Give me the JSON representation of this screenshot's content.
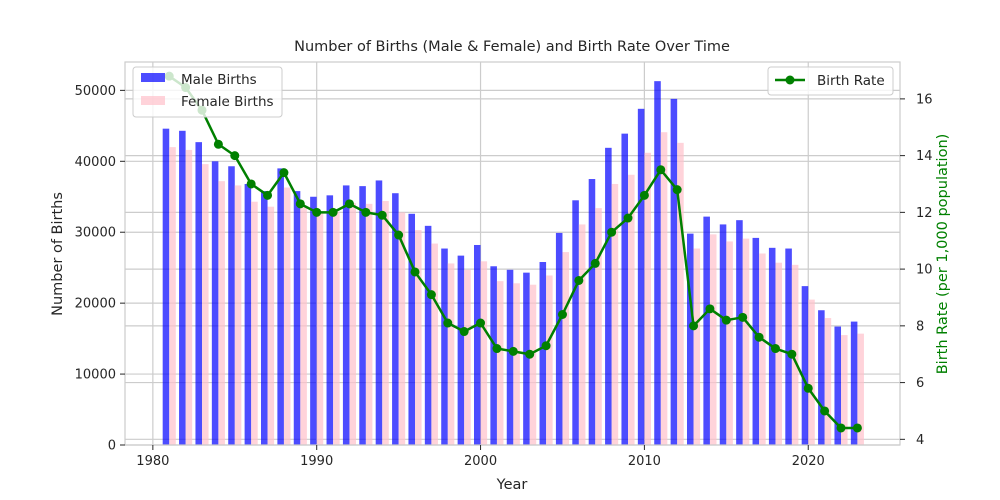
{
  "chart_data": {
    "type": "bar",
    "title": "Number of Births (Male & Female) and Birth Rate Over Time",
    "xlabel": "Year",
    "ylabel": "Number of Births",
    "y2label": "Birth Rate (per 1,000 population)",
    "xlim": [
      1978.3,
      2025.6
    ],
    "ylim": [
      0,
      54000
    ],
    "y2lim": [
      3.8,
      17.3
    ],
    "x_ticks": [
      1980,
      1990,
      2000,
      2010,
      2020
    ],
    "y_ticks": [
      0,
      10000,
      20000,
      30000,
      40000,
      50000
    ],
    "y2_ticks": [
      4,
      6,
      8,
      10,
      12,
      14,
      16
    ],
    "grid": true,
    "x": [
      1981,
      1982,
      1983,
      1984,
      1985,
      1986,
      1987,
      1988,
      1989,
      1990,
      1991,
      1992,
      1993,
      1994,
      1995,
      1996,
      1997,
      1998,
      1999,
      2000,
      2001,
      2002,
      2003,
      2004,
      2005,
      2006,
      2007,
      2008,
      2009,
      2010,
      2011,
      2012,
      2013,
      2014,
      2015,
      2016,
      2017,
      2018,
      2019,
      2020,
      2021,
      2022,
      2023
    ],
    "series": [
      {
        "name": "Male Births",
        "type": "bar",
        "color": "#0000ff",
        "alpha": 0.7,
        "values": [
          44600,
          44300,
          42700,
          40000,
          39300,
          36800,
          35800,
          39000,
          35800,
          35000,
          35200,
          36600,
          36500,
          37300,
          35500,
          32600,
          30900,
          27700,
          26700,
          28200,
          25200,
          24700,
          24300,
          25800,
          29900,
          34500,
          37500,
          41900,
          43900,
          47400,
          51300,
          48800,
          29800,
          32200,
          31100,
          31700,
          29200,
          27800,
          27700,
          22400,
          19000,
          16700,
          17400
        ]
      },
      {
        "name": "Female Births",
        "type": "bar",
        "color": "#ffc0cb",
        "alpha": 0.7,
        "values": [
          42000,
          41600,
          39600,
          37200,
          36600,
          34300,
          33600,
          36300,
          33500,
          32800,
          32900,
          34100,
          34000,
          34400,
          32800,
          30300,
          28400,
          25600,
          24700,
          25900,
          23100,
          22800,
          22600,
          23900,
          27200,
          31100,
          33400,
          36800,
          38100,
          41200,
          44100,
          42600,
          27700,
          29700,
          28700,
          29100,
          27000,
          25700,
          25400,
          20500,
          17900,
          15500,
          15700
        ]
      },
      {
        "name": "Birth Rate",
        "type": "line",
        "color": "#008000",
        "axis": "right",
        "values": [
          16.8,
          16.4,
          15.6,
          14.4,
          14.0,
          13.0,
          12.6,
          13.4,
          12.3,
          12.0,
          12.0,
          12.3,
          12.0,
          11.9,
          11.2,
          9.9,
          9.1,
          8.1,
          7.8,
          8.1,
          7.2,
          7.1,
          7.0,
          7.3,
          8.4,
          9.6,
          10.2,
          11.3,
          11.8,
          12.6,
          13.5,
          12.8,
          8.0,
          8.6,
          8.2,
          8.3,
          7.6,
          7.2,
          7.0,
          5.8,
          5.0,
          4.4,
          4.4
        ]
      }
    ],
    "legend_left": {
      "position": "upper-left",
      "labels": [
        "Male Births",
        "Female Births"
      ]
    },
    "legend_right": {
      "position": "upper-right",
      "labels": [
        "Birth Rate"
      ]
    }
  }
}
